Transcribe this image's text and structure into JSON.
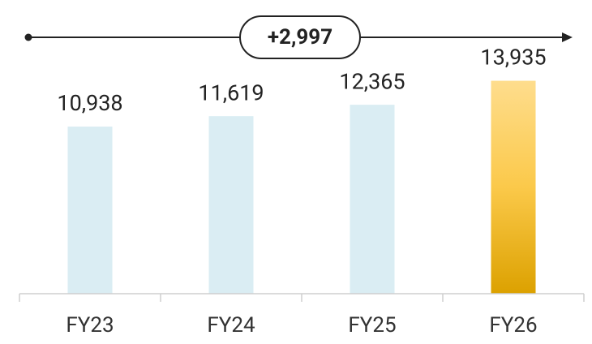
{
  "chart_data": {
    "type": "bar",
    "annotation": "+2,997",
    "categories": [
      "FY23",
      "FY24",
      "FY25",
      "FY26"
    ],
    "values": [
      10938,
      11619,
      12365,
      13935
    ],
    "value_labels": [
      "10,938",
      "11,619",
      "12,365",
      "13,935"
    ],
    "colors": [
      "#daedf3",
      "#daedf3",
      "#daedf3",
      "gradient"
    ],
    "highlight_gradient": [
      "#fedd8d",
      "#fbc94a",
      "#dca100"
    ],
    "ylim": [
      0,
      15000
    ]
  }
}
